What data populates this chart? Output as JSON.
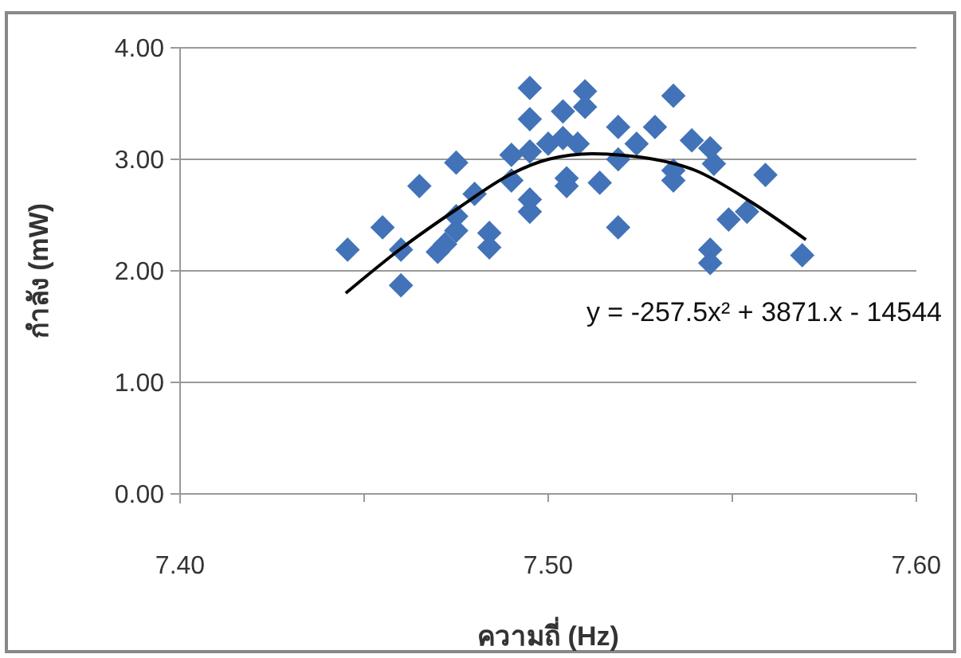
{
  "chart_data": {
    "type": "scatter",
    "xlabel": "ความถี่ (Hz)",
    "ylabel": "กำลัง (mW)",
    "xlim": [
      7.4,
      7.6
    ],
    "xticks": [
      {
        "value": 7.4,
        "label": "7.40"
      },
      {
        "value": 7.45,
        "label": null
      },
      {
        "value": 7.5,
        "label": "7.50"
      },
      {
        "value": 7.55,
        "label": null
      },
      {
        "value": 7.6,
        "label": "7.60"
      }
    ],
    "ylim": [
      0,
      4
    ],
    "yticks": [
      {
        "value": 0,
        "label": "0.00"
      },
      {
        "value": 1,
        "label": "1.00"
      },
      {
        "value": 2,
        "label": "2.00"
      },
      {
        "value": 3,
        "label": "3.00"
      },
      {
        "value": 4,
        "label": "4.00"
      }
    ],
    "grid": "y",
    "marker": "diamond",
    "annotations": [
      "y = -257.5x² + 3871.x - 14544"
    ],
    "series": [
      {
        "color": "#4273b8",
        "x": [
          7.4455,
          7.455,
          7.46,
          7.46,
          7.465,
          7.475,
          7.47,
          7.472,
          7.475,
          7.475,
          7.48,
          7.484,
          7.484,
          7.49,
          7.49,
          7.495,
          7.495,
          7.495,
          7.495,
          7.495,
          7.5,
          7.504,
          7.504,
          7.505,
          7.505,
          7.51,
          7.508,
          7.514,
          7.51,
          7.519,
          7.519,
          7.519,
          7.524,
          7.529,
          7.534,
          7.534,
          7.534,
          7.539,
          7.544,
          7.545,
          7.559,
          7.549,
          7.554,
          7.544,
          7.544,
          7.569
        ],
        "values": [
          2.19,
          2.39,
          2.19,
          1.87,
          2.76,
          2.97,
          2.17,
          2.24,
          2.36,
          2.49,
          2.69,
          2.34,
          2.21,
          3.04,
          2.81,
          2.64,
          2.53,
          3.64,
          3.36,
          3.07,
          3.14,
          3.43,
          3.19,
          2.83,
          2.76,
          3.47,
          3.14,
          2.79,
          3.61,
          3.29,
          3.0,
          2.39,
          3.14,
          3.29,
          3.57,
          2.9,
          2.81,
          3.17,
          3.1,
          2.96,
          2.86,
          2.46,
          2.53,
          2.19,
          2.07,
          2.14
        ]
      },
      {
        "type": "line",
        "color": "#000000",
        "marker": "none",
        "x": [
          7.445,
          7.46,
          7.475,
          7.49,
          7.5,
          7.512,
          7.525,
          7.54,
          7.555,
          7.57
        ],
        "values": [
          1.8,
          2.2,
          2.55,
          2.87,
          3.0,
          3.05,
          3.02,
          2.9,
          2.62,
          2.28
        ]
      }
    ]
  }
}
